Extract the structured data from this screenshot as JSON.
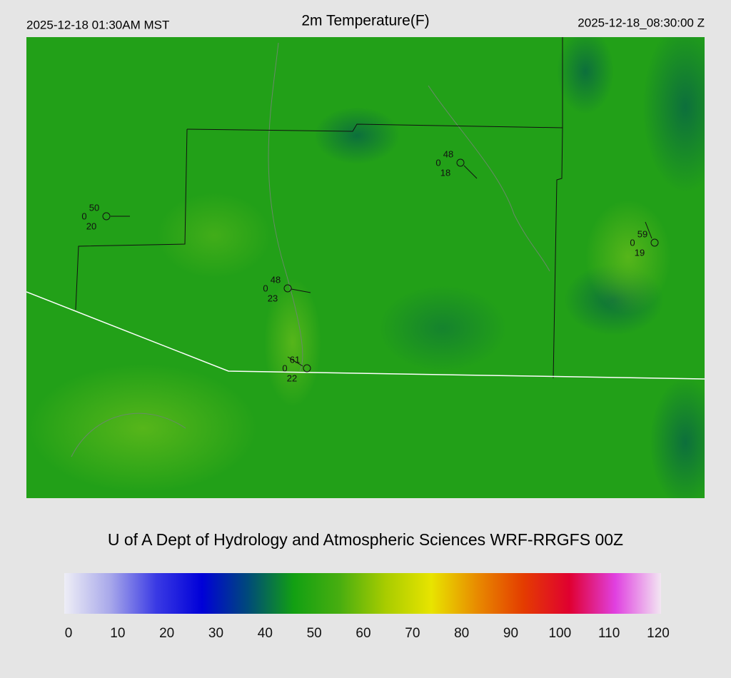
{
  "header": {
    "left": "2025-12-18 01:30AM MST",
    "title": "2m Temperature(F)",
    "right": "2025-12-18_08:30:00 Z"
  },
  "stations": [
    {
      "temperature": 50,
      "pressure": 0,
      "dewpoint": 20
    },
    {
      "temperature": 48,
      "pressure": 0,
      "dewpoint": 18
    },
    {
      "temperature": 59,
      "pressure": 0,
      "dewpoint": 19
    },
    {
      "temperature": 48,
      "pressure": 0,
      "dewpoint": 23
    },
    {
      "temperature": 61,
      "pressure": 0,
      "dewpoint": 22
    }
  ],
  "credit": "U of A Dept of Hydrology and Atmospheric Sciences WRF-RRGFS 00Z",
  "colorbar": {
    "range": [
      0,
      120
    ],
    "ticks": [
      0,
      10,
      20,
      30,
      40,
      50,
      60,
      70,
      80,
      90,
      100,
      110,
      120
    ],
    "colors": [
      "#eeeef6",
      "#a8a8ea",
      "#3a3ae4",
      "#0000d8",
      "#004a7a",
      "#12a012",
      "#48ae10",
      "#a8cc00",
      "#e8e400",
      "#e88a00",
      "#e43c00",
      "#e00030",
      "#e040e0",
      "#f2e6f2"
    ]
  }
}
